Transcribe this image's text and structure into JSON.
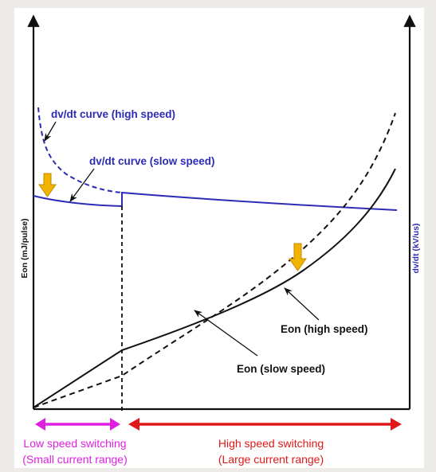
{
  "chart_data": {
    "type": "line",
    "y_left_label": "Eon (mJ/pulse)",
    "y_right_label": "dv/dt (kV/us)",
    "series": [
      {
        "name": "dv/dt curve (high speed)",
        "style": "dashed",
        "color": "#2b2bb8"
      },
      {
        "name": "dv/dt curve (slow speed)",
        "style": "solid",
        "color": "#2b2bb8"
      },
      {
        "name": "Eon (high speed)",
        "style": "solid",
        "color": "#111111"
      },
      {
        "name": "Eon (slow speed)",
        "style": "dashed",
        "color": "#111111"
      }
    ],
    "annotations": {
      "dvdt_high": "dv/dt curve (high speed)",
      "dvdt_slow": "dv/dt curve (slow speed)",
      "eon_high": "Eon (high speed)",
      "eon_slow": "Eon (slow speed)"
    },
    "ranges": {
      "low": {
        "line1": "Low speed switching",
        "line2": "(Small current range)",
        "color": "#e020e0"
      },
      "high": {
        "line1": "High speed switching",
        "line2": "(Large current range)",
        "color": "#e01818"
      }
    },
    "down_arrow_color": "#f0b400"
  }
}
